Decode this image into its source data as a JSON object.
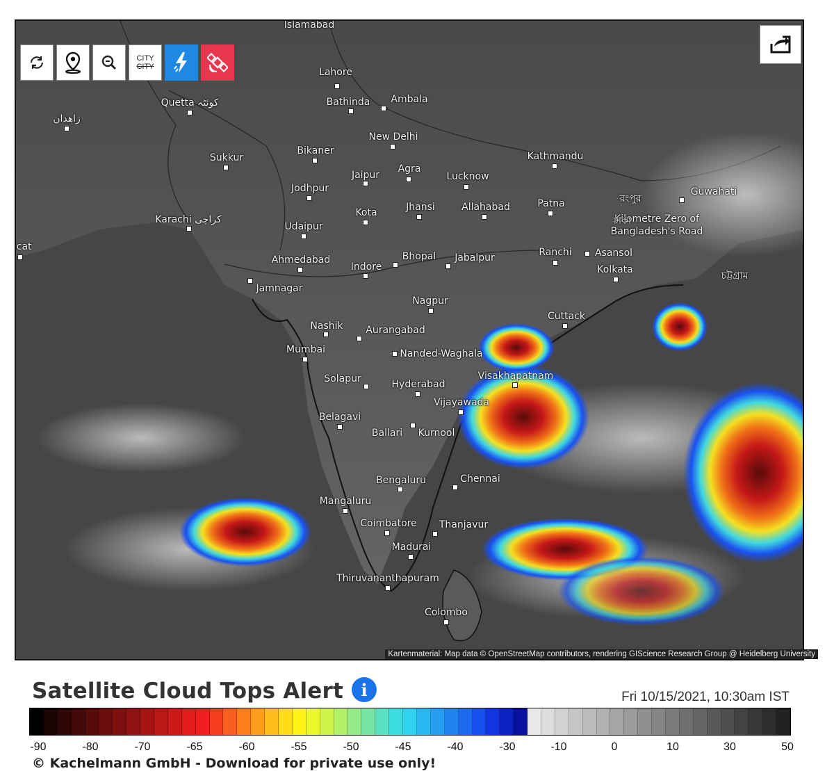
{
  "toolbar": {
    "refresh": "refresh-icon",
    "location": "map-pin-icon",
    "zoom": "zoom-icon",
    "city_top": "CITY",
    "city_bottom": "CITY",
    "lightning": "lightning-icon",
    "satellite": "satellite-icon",
    "share": "share-icon",
    "lightning_color": "#1e88e5",
    "satellite_color": "#e8364e"
  },
  "cities": [
    {
      "name": "Islamabad"
    },
    {
      "name": "Lahore"
    },
    {
      "name": "Quetta کوئٹہ"
    },
    {
      "name": "زاهدان"
    },
    {
      "name": "Bathinda"
    },
    {
      "name": "Ambala"
    },
    {
      "name": "New Delhi"
    },
    {
      "name": "Sukkur"
    },
    {
      "name": "Bikaner"
    },
    {
      "name": "Jaipur"
    },
    {
      "name": "Agra"
    },
    {
      "name": "Lucknow"
    },
    {
      "name": "Kathmandu"
    },
    {
      "name": "Jodhpur"
    },
    {
      "name": "Kota"
    },
    {
      "name": "Jhansi"
    },
    {
      "name": "Allahabad"
    },
    {
      "name": "Patna"
    },
    {
      "name": "Guwahati"
    },
    {
      "name": "Karachi کراچی"
    },
    {
      "name": "Udaipur"
    },
    {
      "name": "Kilometre Zero of Bangladesh's Road"
    },
    {
      "name": "scat"
    },
    {
      "name": "Ahmedabad"
    },
    {
      "name": "Indore"
    },
    {
      "name": "Bhopal"
    },
    {
      "name": "Jabalpur"
    },
    {
      "name": "Ranchi"
    },
    {
      "name": "Asansol"
    },
    {
      "name": "Kolkata"
    },
    {
      "name": "Jamnagar"
    },
    {
      "name": "Nagpur"
    },
    {
      "name": "Nashik"
    },
    {
      "name": "Aurangabad"
    },
    {
      "name": "Cuttack"
    },
    {
      "name": "Mumbai"
    },
    {
      "name": "Nanded-Waghala"
    },
    {
      "name": "Solapur"
    },
    {
      "name": "Hyderabad"
    },
    {
      "name": "Visakhapatnam"
    },
    {
      "name": "Vijayawada"
    },
    {
      "name": "Belagavi"
    },
    {
      "name": "Ballari"
    },
    {
      "name": "Kurnool"
    },
    {
      "name": "Bengaluru"
    },
    {
      "name": "Chennai"
    },
    {
      "name": "Mangaluru"
    },
    {
      "name": "Coimbatore"
    },
    {
      "name": "Thanjavur"
    },
    {
      "name": "Madurai"
    },
    {
      "name": "Thiruvananthapuram"
    },
    {
      "name": "Colombo"
    },
    {
      "name": "চট্টগ্রাম"
    },
    {
      "name": "রংপুর"
    },
    {
      "name": "ঢাকা"
    }
  ],
  "attribution": "Kartenmaterial: Map data © OpenStreetMap contributors, rendering GIScience Research Group @ Heidelberg University",
  "legend": {
    "title": "Satellite Cloud Tops Alert",
    "info": "i",
    "timestamp": "Fri 10/15/2021, 10:30am IST",
    "ticks": [
      "-90",
      "-80",
      "-70",
      "-65",
      "-60",
      "-55",
      "-50",
      "-45",
      "-40",
      "-30",
      "-10",
      "0",
      "10",
      "30",
      "50"
    ],
    "copyright": "© Kachelmann GmbH - Download for private use only!",
    "colors": [
      "#000000",
      "#1a0404",
      "#2e0606",
      "#420909",
      "#560b0b",
      "#6a0d0d",
      "#7e1010",
      "#921212",
      "#a61414",
      "#ba1717",
      "#ce1919",
      "#e21b1b",
      "#f01e1e",
      "#f53d1d",
      "#f85e1c",
      "#fb7e1b",
      "#fd9e1a",
      "#febd19",
      "#ffdc18",
      "#fff217",
      "#eaf82c",
      "#cdf44a",
      "#b0ef68",
      "#93ea86",
      "#76e6a4",
      "#59e1c2",
      "#3cdde0",
      "#2fd2f0",
      "#2ab8f0",
      "#259ef0",
      "#2084f0",
      "#1b6af0",
      "#1650f0",
      "#1136e0",
      "#0c22c0",
      "#0810a0",
      "#e8e8e8",
      "#dddddd",
      "#d2d2d2",
      "#c7c7c7",
      "#bcbcbc",
      "#b1b1b1",
      "#a6a6a6",
      "#9b9b9b",
      "#909090",
      "#858585",
      "#7a7a7a",
      "#6f6f6f",
      "#646464",
      "#595959",
      "#4e4e4e",
      "#434343",
      "#383838",
      "#2d2d2d",
      "#222222"
    ]
  }
}
